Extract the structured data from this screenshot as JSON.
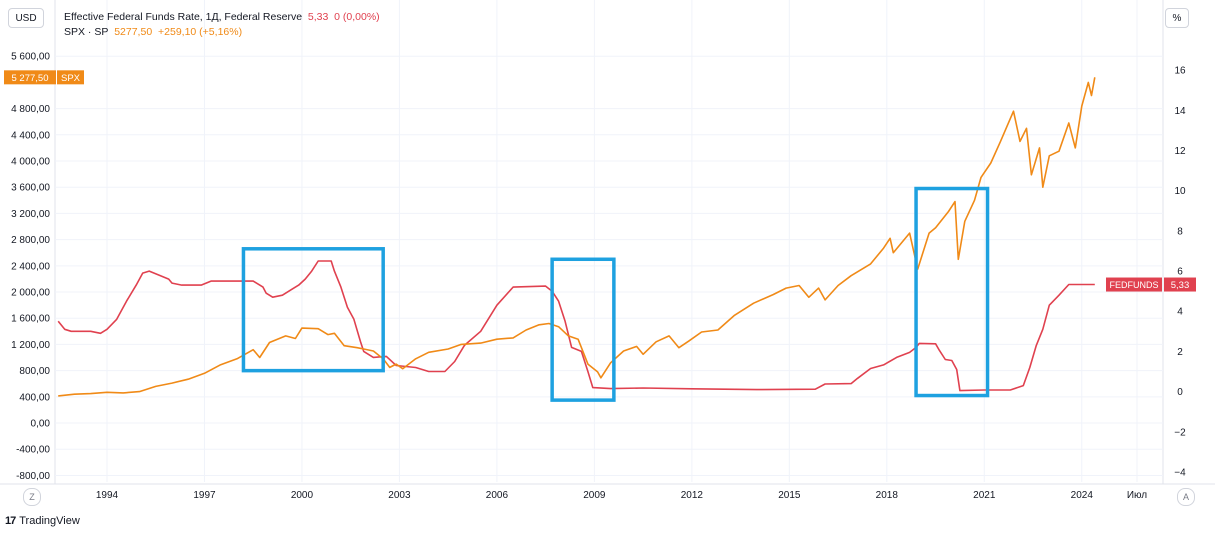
{
  "header": {
    "currency_button": "USD",
    "percent_button": "%",
    "series1_title": "Effective Federal Funds Rate, 1Д, Federal Reserve",
    "series1_value": "5,33",
    "series1_change": "0 (0,00%)",
    "series2_title": "SPX · SP",
    "series2_value": "5277,50",
    "series2_change": "+259,10 (+5,16%)"
  },
  "badges": {
    "spx_price": "5 277,50",
    "spx_label": "SPX",
    "fed_label": "FEDFUNDS",
    "fed_value": "5,33"
  },
  "footer": {
    "z_button": "Z",
    "a_button": "A",
    "brand": "TradingView",
    "brand_logo": "17"
  },
  "colors": {
    "fedfunds": "#e0414f",
    "spx": "#f08a17",
    "highlight": "#1ea1e0",
    "grid": "#f0f3fa",
    "axis_text": "#131722"
  },
  "chart_data": {
    "type": "line",
    "title": "",
    "left_axis": {
      "unit": "USD",
      "ylim": [
        -900,
        6000
      ],
      "ticks": [
        -800,
        -400,
        0,
        400,
        800,
        1200,
        1600,
        2000,
        2400,
        2800,
        3200,
        3600,
        4000,
        4400,
        4800,
        5600
      ],
      "tick_labels": [
        "-800,00",
        "-400,00",
        "0,00",
        "400,00",
        "800,00",
        "1 200,00",
        "1 600,00",
        "2 000,00",
        "2 400,00",
        "2 800,00",
        "3 200,00",
        "3 600,00",
        "4 000,00",
        "4 400,00",
        "4 800,00",
        "5 600,00"
      ]
    },
    "right_axis": {
      "unit": "%",
      "ylim": [
        -4.5,
        18
      ],
      "ticks": [
        -4,
        -2,
        0,
        2,
        4,
        6,
        8,
        10,
        12,
        14,
        16
      ],
      "tick_labels": [
        "−4",
        "−2",
        "0",
        "2",
        "4",
        "6",
        "8",
        "10",
        "12",
        "14",
        "16"
      ]
    },
    "x_axis": {
      "xlim": [
        1992.4,
        2026.5
      ],
      "ticks": [
        1994,
        1997,
        2000,
        2003,
        2006,
        2009,
        2012,
        2015,
        2018,
        2021,
        2024,
        2025.7
      ],
      "tick_labels": [
        "1994",
        "1997",
        "2000",
        "2003",
        "2006",
        "2009",
        "2012",
        "2015",
        "2018",
        "2021",
        "2024",
        "Июл"
      ]
    },
    "series": [
      {
        "name": "Effective Federal Funds Rate",
        "axis": "right",
        "points": [
          [
            1992.5,
            3.5
          ],
          [
            1992.7,
            3.1
          ],
          [
            1992.9,
            3.0
          ],
          [
            1993.2,
            3.0
          ],
          [
            1993.5,
            3.0
          ],
          [
            1993.8,
            2.9
          ],
          [
            1994.0,
            3.1
          ],
          [
            1994.3,
            3.6
          ],
          [
            1994.6,
            4.5
          ],
          [
            1994.9,
            5.3
          ],
          [
            1995.1,
            5.9
          ],
          [
            1995.3,
            6.0
          ],
          [
            1995.6,
            5.8
          ],
          [
            1995.9,
            5.6
          ],
          [
            1996.0,
            5.4
          ],
          [
            1996.3,
            5.3
          ],
          [
            1996.6,
            5.3
          ],
          [
            1996.9,
            5.3
          ],
          [
            1997.2,
            5.5
          ],
          [
            1997.5,
            5.5
          ],
          [
            1997.8,
            5.5
          ],
          [
            1998.2,
            5.5
          ],
          [
            1998.5,
            5.5
          ],
          [
            1998.8,
            5.2
          ],
          [
            1998.9,
            4.9
          ],
          [
            1999.1,
            4.7
          ],
          [
            1999.4,
            4.8
          ],
          [
            1999.7,
            5.1
          ],
          [
            1999.9,
            5.3
          ],
          [
            2000.1,
            5.6
          ],
          [
            2000.3,
            6.0
          ],
          [
            2000.5,
            6.5
          ],
          [
            2000.9,
            6.5
          ],
          [
            2001.0,
            6.0
          ],
          [
            2001.2,
            5.2
          ],
          [
            2001.4,
            4.2
          ],
          [
            2001.6,
            3.6
          ],
          [
            2001.8,
            2.5
          ],
          [
            2001.9,
            2.0
          ],
          [
            2002.2,
            1.7
          ],
          [
            2002.6,
            1.75
          ],
          [
            2002.9,
            1.3
          ],
          [
            2003.5,
            1.2
          ],
          [
            2003.9,
            1.0
          ],
          [
            2004.4,
            1.0
          ],
          [
            2004.7,
            1.5
          ],
          [
            2005.0,
            2.3
          ],
          [
            2005.5,
            3.0
          ],
          [
            2006.0,
            4.3
          ],
          [
            2006.5,
            5.2
          ],
          [
            2007.5,
            5.25
          ],
          [
            2007.7,
            5.0
          ],
          [
            2007.9,
            4.5
          ],
          [
            2008.1,
            3.5
          ],
          [
            2008.3,
            2.2
          ],
          [
            2008.6,
            2.0
          ],
          [
            2008.8,
            1.0
          ],
          [
            2008.95,
            0.2
          ],
          [
            2009.5,
            0.15
          ],
          [
            2010.5,
            0.18
          ],
          [
            2012.0,
            0.14
          ],
          [
            2014.0,
            0.1
          ],
          [
            2015.8,
            0.12
          ],
          [
            2016.1,
            0.38
          ],
          [
            2016.9,
            0.4
          ],
          [
            2017.1,
            0.66
          ],
          [
            2017.5,
            1.15
          ],
          [
            2017.9,
            1.33
          ],
          [
            2018.3,
            1.7
          ],
          [
            2018.7,
            1.95
          ],
          [
            2018.9,
            2.2
          ],
          [
            2019.0,
            2.4
          ],
          [
            2019.5,
            2.38
          ],
          [
            2019.6,
            2.1
          ],
          [
            2019.8,
            1.6
          ],
          [
            2020.0,
            1.55
          ],
          [
            2020.15,
            1.1
          ],
          [
            2020.25,
            0.05
          ],
          [
            2021.0,
            0.08
          ],
          [
            2021.8,
            0.08
          ],
          [
            2022.2,
            0.3
          ],
          [
            2022.4,
            1.2
          ],
          [
            2022.6,
            2.3
          ],
          [
            2022.8,
            3.1
          ],
          [
            2023.0,
            4.3
          ],
          [
            2023.3,
            4.8
          ],
          [
            2023.6,
            5.33
          ],
          [
            2024.4,
            5.33
          ]
        ]
      },
      {
        "name": "SPX",
        "axis": "left",
        "points": [
          [
            1992.5,
            415
          ],
          [
            1993.0,
            440
          ],
          [
            1993.5,
            450
          ],
          [
            1994.0,
            470
          ],
          [
            1994.5,
            460
          ],
          [
            1995.0,
            480
          ],
          [
            1995.5,
            560
          ],
          [
            1996.0,
            610
          ],
          [
            1996.5,
            670
          ],
          [
            1997.0,
            760
          ],
          [
            1997.5,
            890
          ],
          [
            1998.0,
            980
          ],
          [
            1998.5,
            1120
          ],
          [
            1998.7,
            1000
          ],
          [
            1999.0,
            1230
          ],
          [
            1999.5,
            1330
          ],
          [
            1999.8,
            1290
          ],
          [
            2000.0,
            1450
          ],
          [
            2000.5,
            1440
          ],
          [
            2000.8,
            1350
          ],
          [
            2001.0,
            1370
          ],
          [
            2001.3,
            1180
          ],
          [
            2001.7,
            1150
          ],
          [
            2001.9,
            1130
          ],
          [
            2002.2,
            1100
          ],
          [
            2002.5,
            980
          ],
          [
            2002.7,
            850
          ],
          [
            2002.9,
            900
          ],
          [
            2003.1,
            830
          ],
          [
            2003.5,
            980
          ],
          [
            2003.9,
            1080
          ],
          [
            2004.5,
            1130
          ],
          [
            2004.9,
            1200
          ],
          [
            2005.5,
            1220
          ],
          [
            2006.0,
            1280
          ],
          [
            2006.5,
            1300
          ],
          [
            2006.9,
            1420
          ],
          [
            2007.3,
            1500
          ],
          [
            2007.6,
            1520
          ],
          [
            2007.9,
            1470
          ],
          [
            2008.2,
            1330
          ],
          [
            2008.5,
            1280
          ],
          [
            2008.8,
            900
          ],
          [
            2009.1,
            780
          ],
          [
            2009.2,
            690
          ],
          [
            2009.5,
            920
          ],
          [
            2009.9,
            1100
          ],
          [
            2010.3,
            1170
          ],
          [
            2010.5,
            1050
          ],
          [
            2010.9,
            1240
          ],
          [
            2011.3,
            1330
          ],
          [
            2011.6,
            1150
          ],
          [
            2011.9,
            1250
          ],
          [
            2012.3,
            1390
          ],
          [
            2012.8,
            1420
          ],
          [
            2013.3,
            1640
          ],
          [
            2013.9,
            1830
          ],
          [
            2014.5,
            1960
          ],
          [
            2014.9,
            2060
          ],
          [
            2015.3,
            2100
          ],
          [
            2015.6,
            1920
          ],
          [
            2015.9,
            2060
          ],
          [
            2016.1,
            1880
          ],
          [
            2016.5,
            2100
          ],
          [
            2016.9,
            2250
          ],
          [
            2017.5,
            2430
          ],
          [
            2017.9,
            2670
          ],
          [
            2018.1,
            2820
          ],
          [
            2018.2,
            2600
          ],
          [
            2018.7,
            2900
          ],
          [
            2018.95,
            2350
          ],
          [
            2019.3,
            2900
          ],
          [
            2019.5,
            2980
          ],
          [
            2019.9,
            3230
          ],
          [
            2020.1,
            3380
          ],
          [
            2020.2,
            2500
          ],
          [
            2020.4,
            3080
          ],
          [
            2020.7,
            3400
          ],
          [
            2020.9,
            3750
          ],
          [
            2021.2,
            3970
          ],
          [
            2021.5,
            4300
          ],
          [
            2021.9,
            4760
          ],
          [
            2022.1,
            4300
          ],
          [
            2022.3,
            4500
          ],
          [
            2022.45,
            3790
          ],
          [
            2022.7,
            4200
          ],
          [
            2022.8,
            3600
          ],
          [
            2023.0,
            4080
          ],
          [
            2023.3,
            4150
          ],
          [
            2023.6,
            4580
          ],
          [
            2023.8,
            4200
          ],
          [
            2024.0,
            4840
          ],
          [
            2024.2,
            5200
          ],
          [
            2024.3,
            5000
          ],
          [
            2024.4,
            5277.5
          ]
        ]
      }
    ],
    "highlight_boxes": [
      {
        "x0": 1998.2,
        "x1": 2002.5,
        "left_y0": 800,
        "left_y1": 2660
      },
      {
        "x0": 2007.7,
        "x1": 2009.6,
        "left_y0": 350,
        "left_y1": 2500
      },
      {
        "x0": 2018.9,
        "x1": 2021.1,
        "left_y0": 420,
        "left_y1": 3580
      }
    ]
  }
}
